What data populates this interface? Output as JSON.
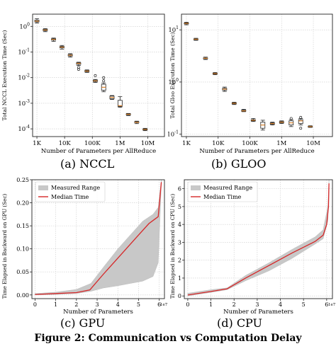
{
  "figure_caption": "Figure 2: Communication vs Computation Delay",
  "chart_data": [
    {
      "id": "nccl",
      "type": "box",
      "caption": "(a) NCCL",
      "ylabel": "Total NCCL Execution Time (Sec)",
      "xlabel": "Number of Parameters per AllReduce",
      "xscale": "log",
      "yscale": "log",
      "xlim": [
        700,
        40000000
      ],
      "ylim": [
        5e-05,
        3
      ],
      "grid": true,
      "x_ticks": [
        {
          "v": 1000,
          "label": "1K"
        },
        {
          "v": 10000,
          "label": "10K"
        },
        {
          "v": 100000,
          "label": "100K"
        },
        {
          "v": 1000000,
          "label": "1M"
        },
        {
          "v": 10000000,
          "label": "10M"
        }
      ],
      "y_ticks": [
        {
          "v": 1,
          "label": "10",
          "exp": "0"
        },
        {
          "v": 0.1,
          "label": "10",
          "exp": "-1"
        },
        {
          "v": 0.01,
          "label": "10",
          "exp": "-2"
        },
        {
          "v": 0.001,
          "label": "10",
          "exp": "-3"
        },
        {
          "v": 0.0001,
          "label": "10",
          "exp": "-4"
        }
      ],
      "boxes": [
        {
          "x": 1000,
          "min": 1.35,
          "q1": 1.5,
          "med": 1.6,
          "q3": 1.75,
          "max": 2.0,
          "outliers": []
        },
        {
          "x": 2000,
          "min": 0.62,
          "q1": 0.68,
          "med": 0.72,
          "q3": 0.77,
          "max": 0.82,
          "outliers": []
        },
        {
          "x": 4000,
          "min": 0.26,
          "q1": 0.29,
          "med": 0.31,
          "q3": 0.33,
          "max": 0.35,
          "outliers": []
        },
        {
          "x": 8000,
          "min": 0.13,
          "q1": 0.145,
          "med": 0.155,
          "q3": 0.165,
          "max": 0.18,
          "outliers": []
        },
        {
          "x": 16000,
          "min": 0.063,
          "q1": 0.07,
          "med": 0.075,
          "q3": 0.08,
          "max": 0.086,
          "outliers": []
        },
        {
          "x": 32000,
          "min": 0.03,
          "q1": 0.033,
          "med": 0.036,
          "q3": 0.038,
          "max": 0.04,
          "outliers": [
            0.025,
            0.021
          ]
        },
        {
          "x": 64000,
          "min": 0.016,
          "q1": 0.017,
          "med": 0.018,
          "q3": 0.019,
          "max": 0.02,
          "outliers": []
        },
        {
          "x": 128000,
          "min": 0.0065,
          "q1": 0.007,
          "med": 0.0075,
          "q3": 0.008,
          "max": 0.0085,
          "outliers": [
            0.012
          ]
        },
        {
          "x": 256000,
          "min": 0.0028,
          "q1": 0.0032,
          "med": 0.0042,
          "q3": 0.0055,
          "max": 0.0062,
          "outliers": [
            0.0075,
            0.01
          ]
        },
        {
          "x": 512000,
          "min": 0.0014,
          "q1": 0.0015,
          "med": 0.0017,
          "q3": 0.0019,
          "max": 0.002,
          "outliers": []
        },
        {
          "x": 1000000,
          "min": 0.0007,
          "q1": 0.00075,
          "med": 0.0008,
          "q3": 0.0013,
          "max": 0.0018,
          "outliers": []
        },
        {
          "x": 2000000,
          "min": 0.00033,
          "q1": 0.00035,
          "med": 0.00037,
          "q3": 0.00039,
          "max": 0.0004,
          "outliers": []
        },
        {
          "x": 4000000,
          "min": 0.00016,
          "q1": 0.000175,
          "med": 0.00018,
          "q3": 0.00019,
          "max": 0.0002,
          "outliers": []
        },
        {
          "x": 8000000,
          "min": 8.5e-05,
          "q1": 9e-05,
          "med": 9.5e-05,
          "q3": 0.0001,
          "max": 0.000105,
          "outliers": []
        }
      ]
    },
    {
      "id": "gloo",
      "type": "box",
      "caption": "(b) GLOO",
      "ylabel": "Total Gloo Execution Time (Sec)",
      "xlabel": "Number of Parameters per AllReduce",
      "xscale": "log",
      "yscale": "log",
      "xlim": [
        700,
        40000000
      ],
      "ylim": [
        0.09,
        20
      ],
      "grid": true,
      "x_ticks": [
        {
          "v": 1000,
          "label": "1K"
        },
        {
          "v": 10000,
          "label": "10K"
        },
        {
          "v": 100000,
          "label": "100K"
        },
        {
          "v": 1000000,
          "label": "1M"
        },
        {
          "v": 10000000,
          "label": "10M"
        }
      ],
      "y_ticks": [
        {
          "v": 10,
          "label": "10",
          "exp": "1"
        },
        {
          "v": 1,
          "label": "10",
          "exp": "0"
        },
        {
          "v": 0.1,
          "label": "10",
          "exp": "-1"
        }
      ],
      "boxes": [
        {
          "x": 1000,
          "min": 12.5,
          "q1": 13.0,
          "med": 13.3,
          "q3": 13.6,
          "max": 14.0,
          "outliers": []
        },
        {
          "x": 2000,
          "min": 6.3,
          "q1": 6.5,
          "med": 6.6,
          "q3": 6.7,
          "max": 6.9,
          "outliers": []
        },
        {
          "x": 4000,
          "min": 2.7,
          "q1": 2.8,
          "med": 2.85,
          "q3": 2.9,
          "max": 3.0,
          "outliers": []
        },
        {
          "x": 8000,
          "min": 1.38,
          "q1": 1.42,
          "med": 1.45,
          "q3": 1.48,
          "max": 1.52,
          "outliers": []
        },
        {
          "x": 16000,
          "min": 0.66,
          "q1": 0.7,
          "med": 0.73,
          "q3": 0.76,
          "max": 0.8,
          "outliers": []
        },
        {
          "x": 32000,
          "min": 0.37,
          "q1": 0.38,
          "med": 0.39,
          "q3": 0.4,
          "max": 0.41,
          "outliers": []
        },
        {
          "x": 64000,
          "min": 0.27,
          "q1": 0.275,
          "med": 0.28,
          "q3": 0.29,
          "max": 0.3,
          "outliers": []
        },
        {
          "x": 128000,
          "min": 0.175,
          "q1": 0.18,
          "med": 0.185,
          "q3": 0.19,
          "max": 0.2,
          "outliers": []
        },
        {
          "x": 256000,
          "min": 0.12,
          "q1": 0.13,
          "med": 0.15,
          "q3": 0.17,
          "max": 0.185,
          "outliers": []
        },
        {
          "x": 512000,
          "min": 0.15,
          "q1": 0.155,
          "med": 0.16,
          "q3": 0.165,
          "max": 0.17,
          "outliers": []
        },
        {
          "x": 1000000,
          "min": 0.16,
          "q1": 0.165,
          "med": 0.17,
          "q3": 0.175,
          "max": 0.18,
          "outliers": []
        },
        {
          "x": 2000000,
          "min": 0.14,
          "q1": 0.15,
          "med": 0.165,
          "q3": 0.18,
          "max": 0.19,
          "outliers": [
            0.2
          ]
        },
        {
          "x": 4000000,
          "min": 0.15,
          "q1": 0.16,
          "med": 0.18,
          "q3": 0.19,
          "max": 0.2,
          "outliers": [
            0.21,
            0.13
          ]
        },
        {
          "x": 8000000,
          "min": 0.135,
          "q1": 0.138,
          "med": 0.14,
          "q3": 0.142,
          "max": 0.145,
          "outliers": []
        }
      ]
    },
    {
      "id": "gpu",
      "type": "area",
      "caption": "(c) GPU",
      "ylabel": "Time Elapsed in Backward on GPU (Sec)",
      "xlabel": "Number of Parameters",
      "x_multiplier": "1e7",
      "xlim": [
        -0.15,
        6.25
      ],
      "ylim": [
        -0.008,
        0.25
      ],
      "grid": true,
      "legend_position": "top-left",
      "legend": [
        "Measured Range",
        "Median Time"
      ],
      "x_ticks": [
        0,
        1,
        2,
        3,
        4,
        5,
        6
      ],
      "y_ticks": [
        {
          "v": 0.0,
          "label": "0.00"
        },
        {
          "v": 0.05,
          "label": "0.05"
        },
        {
          "v": 0.1,
          "label": "0.10"
        },
        {
          "v": 0.15,
          "label": "0.15"
        },
        {
          "v": 0.2,
          "label": "0.20"
        },
        {
          "v": 0.25,
          "label": "0.25"
        }
      ],
      "range_x": [
        0,
        1,
        2,
        2.7,
        3.3,
        4.0,
        4.6,
        5.2,
        5.7,
        5.95,
        6.1
      ],
      "range_low": [
        0,
        0.001,
        0.003,
        0.008,
        0.015,
        0.02,
        0.025,
        0.03,
        0.04,
        0.07,
        0.24
      ],
      "range_high": [
        0.003,
        0.006,
        0.012,
        0.025,
        0.06,
        0.1,
        0.13,
        0.16,
        0.175,
        0.19,
        0.25
      ],
      "median_x": [
        0,
        1,
        2,
        2.65,
        3.3,
        4.0,
        5.0,
        5.5,
        5.8,
        5.95,
        6.1
      ],
      "median_y": [
        0.001,
        0.003,
        0.005,
        0.011,
        0.045,
        0.08,
        0.13,
        0.155,
        0.165,
        0.17,
        0.245
      ]
    },
    {
      "id": "cpu",
      "type": "area",
      "caption": "(d) CPU",
      "ylabel": "Time Elapsed in Backward on CPU (Sec)",
      "xlabel": "Number of Parameters",
      "x_multiplier": "1e7",
      "xlim": [
        -0.15,
        6.25
      ],
      "ylim": [
        -0.15,
        6.5
      ],
      "grid": true,
      "legend_position": "top-left",
      "legend": [
        "Measured Range",
        "Median Time"
      ],
      "x_ticks": [
        0,
        1,
        2,
        3,
        4,
        5,
        6
      ],
      "y_ticks": [
        {
          "v": 0,
          "label": "0"
        },
        {
          "v": 1,
          "label": "1"
        },
        {
          "v": 2,
          "label": "2"
        },
        {
          "v": 3,
          "label": "3"
        },
        {
          "v": 4,
          "label": "4"
        },
        {
          "v": 5,
          "label": "5"
        },
        {
          "v": 6,
          "label": "6"
        }
      ],
      "range_x": [
        0,
        1,
        1.7,
        2.5,
        3.5,
        4.5,
        5.5,
        5.85,
        6.05,
        6.1
      ],
      "range_low": [
        0,
        0.2,
        0.35,
        0.85,
        1.4,
        2.1,
        2.9,
        3.2,
        4.2,
        6.0
      ],
      "range_high": [
        0.15,
        0.35,
        0.45,
        1.15,
        1.85,
        2.6,
        3.3,
        3.7,
        5.0,
        6.5
      ],
      "median_x": [
        0,
        1,
        1.7,
        2.5,
        3.5,
        4.5,
        5.5,
        5.85,
        6.0,
        6.08,
        6.1
      ],
      "median_y": [
        0.05,
        0.25,
        0.4,
        1.0,
        1.7,
        2.4,
        3.05,
        3.4,
        4.0,
        5.0,
        6.3
      ]
    }
  ]
}
